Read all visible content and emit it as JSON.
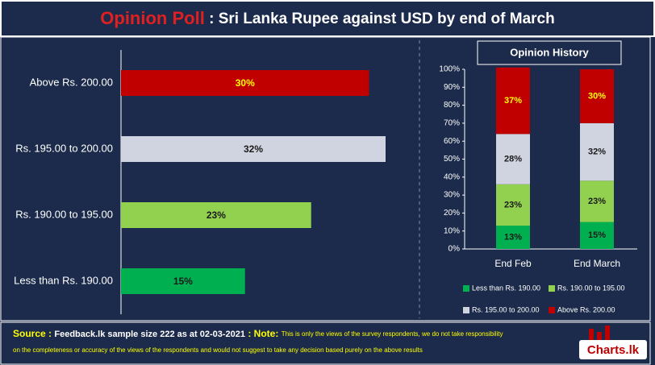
{
  "header": {
    "title_highlight": "Opinion Poll",
    "title_rest": " : Sri Lanka Rupee against USD by end of March"
  },
  "chart_data": [
    {
      "type": "hbar",
      "categories": [
        "Above Rs. 200.00",
        "Rs. 195.00 to 200.00",
        "Rs. 190.00 to 195.00",
        "Less than Rs. 190.00"
      ],
      "values": [
        30,
        32,
        23,
        15
      ],
      "value_labels": [
        "30%",
        "32%",
        "23%",
        "15%"
      ],
      "colors": [
        "#c00000",
        "#d0d4e0",
        "#92d050",
        "#00b050"
      ],
      "label_colors": [
        "#ffff00",
        "#1a1a1a",
        "#1a1a1a",
        "#1a1a1a"
      ]
    },
    {
      "type": "stacked",
      "title": "Opinion History",
      "categories": [
        "End Feb",
        "End March"
      ],
      "series": [
        {
          "name": "Less than Rs. 190.00",
          "color": "#00b050",
          "label_color": "#1a1a1a",
          "values": [
            13,
            15
          ],
          "value_labels": [
            "13%",
            "15%"
          ]
        },
        {
          "name": "Rs. 190.00 to 195.00",
          "color": "#92d050",
          "label_color": "#1a1a1a",
          "values": [
            23,
            23
          ],
          "value_labels": [
            "23%",
            "23%"
          ]
        },
        {
          "name": "Rs. 195.00 to 200.00",
          "color": "#d0d4e0",
          "label_color": "#1a1a1a",
          "values": [
            28,
            32
          ],
          "value_labels": [
            "28%",
            "32%"
          ]
        },
        {
          "name": "Above Rs. 200.00",
          "color": "#c00000",
          "label_color": "#ffff00",
          "values": [
            37,
            30
          ],
          "value_labels": [
            "37%",
            "30%"
          ]
        }
      ],
      "ylim": [
        0,
        100
      ],
      "yticks": [
        {
          "value": 0,
          "label": "0%"
        },
        {
          "value": 10,
          "label": "10%"
        },
        {
          "value": 20,
          "label": "20%"
        },
        {
          "value": 30,
          "label": "30%"
        },
        {
          "value": 40,
          "label": "40%"
        },
        {
          "value": 50,
          "label": "50%"
        },
        {
          "value": 60,
          "label": "60%"
        },
        {
          "value": 70,
          "label": "70%"
        },
        {
          "value": 80,
          "label": "80%"
        },
        {
          "value": 90,
          "label": "90%"
        },
        {
          "value": 100,
          "label": "100%"
        }
      ]
    }
  ],
  "footer": {
    "source_label": "Source :",
    "source": "Feedback.lk sample size 222 as at 02-03-2021",
    "note_label": " : Note:",
    "note_lines": [
      "This is only the views of the survey respondents, we do not take responsibility",
      "on the completeness or accuracy of the views  of the respondents and  would not suggest to take any decision based purely on the above results"
    ],
    "logo": "Charts.lk"
  }
}
